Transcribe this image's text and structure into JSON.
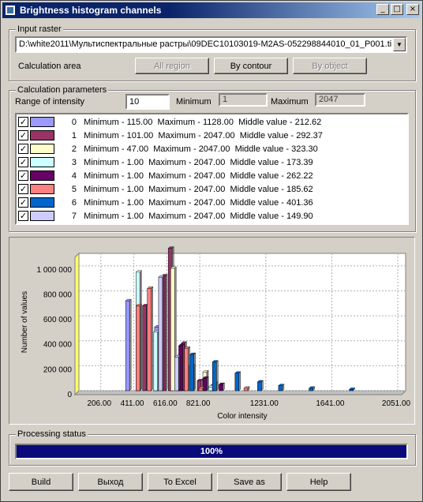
{
  "window": {
    "title": "Brightness histogram channels",
    "controls": [
      "_",
      "□",
      "×"
    ]
  },
  "input_raster": {
    "legend": "Input raster",
    "path": "D:\\white2011\\Мультиспектральные растры\\09DEC10103019-M2AS-052298844010_01_P001.tif",
    "calc_area_label": "Calculation area",
    "buttons": [
      {
        "label": "All region",
        "enabled": false
      },
      {
        "label": "By contour",
        "enabled": true
      },
      {
        "label": "By object",
        "enabled": false
      }
    ]
  },
  "calc_params": {
    "legend": "Calculation parameters",
    "range_label": "Range of intensity",
    "range_value": "10",
    "min_label": "Minimum",
    "min_value": "1",
    "max_label": "Maximum",
    "max_value": "2047",
    "channels": [
      {
        "idx": "0",
        "min": "115.00",
        "max": "1128.00",
        "mid": "212.62",
        "color": "#9999ff",
        "checked": true
      },
      {
        "idx": "1",
        "min": "101.00",
        "max": "2047.00",
        "mid": "292.37",
        "color": "#993366",
        "checked": true
      },
      {
        "idx": "2",
        "min": "47.00",
        "max": "2047.00",
        "mid": "323.30",
        "color": "#ffffcc",
        "checked": true
      },
      {
        "idx": "3",
        "min": "1.00",
        "max": "2047.00",
        "mid": "173.39",
        "color": "#ccffff",
        "checked": true
      },
      {
        "idx": "4",
        "min": "1.00",
        "max": "2047.00",
        "mid": "262.22",
        "color": "#660066",
        "checked": true
      },
      {
        "idx": "5",
        "min": "1.00",
        "max": "2047.00",
        "mid": "185.62",
        "color": "#ff8080",
        "checked": true
      },
      {
        "idx": "6",
        "min": "1.00",
        "max": "2047.00",
        "mid": "401.36",
        "color": "#0066cc",
        "checked": true
      },
      {
        "idx": "7",
        "min": "1.00",
        "max": "2047.00",
        "mid": "149.90",
        "color": "#ccccff",
        "checked": true
      }
    ],
    "min_word": "Minimum -",
    "max_word": "Maximum -",
    "mid_word": "Middle value -"
  },
  "chart_data": {
    "type": "bar",
    "xlabel": "Color intensity",
    "ylabel": "Number of values",
    "ylim": [
      0,
      1100000
    ],
    "yticks": [
      0,
      200000,
      400000,
      600000,
      800000,
      1000000
    ],
    "ytick_labels": [
      "0",
      "200 000",
      "400 000",
      "600 000",
      "800 000",
      "1 000 000"
    ],
    "xtick_labels": [
      "206.00",
      "411.00",
      "616.00",
      "821.00",
      "1231.00",
      "1641.00",
      "2051.00"
    ],
    "xtick_values": [
      206,
      411,
      616,
      821,
      1231,
      1641,
      2051
    ],
    "xlim": [
      70,
      2100
    ],
    "grid": true,
    "series": [
      {
        "values": [
          [
            370,
            720000
          ],
          [
            550,
            510000
          ],
          [
            690,
            0
          ]
        ]
      },
      {
        "values": [
          [
            470,
            680000
          ],
          [
            590,
            920000
          ],
          [
            630,
            1140000
          ],
          [
            710,
            380000
          ],
          [
            810,
            80000
          ],
          [
            890,
            40000
          ]
        ]
      },
      {
        "values": [
          [
            590,
            0
          ],
          [
            640,
            980000
          ],
          [
            680,
            280000
          ],
          [
            840,
            150000
          ],
          [
            900,
            60000
          ]
        ]
      },
      {
        "values": [
          [
            340,
            0
          ],
          [
            420,
            950000
          ],
          [
            530,
            470000
          ],
          [
            750,
            200000
          ],
          [
            870,
            30000
          ]
        ]
      },
      {
        "values": [
          [
            700,
            360000
          ],
          [
            790,
            0
          ],
          [
            850,
            100000
          ],
          [
            950,
            50000
          ],
          [
            1000,
            0
          ]
        ]
      },
      {
        "values": [
          [
            430,
            680000
          ],
          [
            500,
            820000
          ],
          [
            730,
            340000
          ],
          [
            820,
            20000
          ],
          [
            1100,
            20000
          ]
        ]
      },
      {
        "values": [
          [
            760,
            290000
          ],
          [
            900,
            230000
          ],
          [
            1040,
            140000
          ],
          [
            1180,
            70000
          ],
          [
            1310,
            40000
          ],
          [
            1500,
            20000
          ],
          [
            1750,
            10000
          ],
          [
            2050,
            0
          ]
        ]
      },
      {
        "values": [
          [
            560,
            910000
          ],
          [
            660,
            270000
          ],
          [
            760,
            0
          ],
          [
            950,
            0
          ]
        ]
      }
    ]
  },
  "status": {
    "legend": "Processing status",
    "progress": 1.0,
    "progress_label": "100%"
  },
  "footer": {
    "buttons": [
      "Build",
      "Выход",
      "To Excel",
      "Save as",
      "Help"
    ]
  }
}
